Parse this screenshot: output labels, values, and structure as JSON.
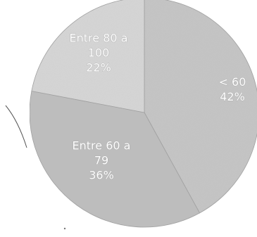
{
  "chart_data": {
    "type": "pie",
    "start_angle_deg": 0,
    "direction": "clockwise",
    "slices": [
      {
        "label_lines": [
          "< 60",
          "42%"
        ],
        "value": 42,
        "color": "#c4c4c4"
      },
      {
        "label_lines": [
          "Entre 60 a",
          "79",
          "36%"
        ],
        "value": 36,
        "color": "#bdbdbd"
      },
      {
        "label_lines": [
          "Entre 80 a",
          "100",
          "22%"
        ],
        "value": 22,
        "color": "#d6d6d6"
      }
    ]
  }
}
